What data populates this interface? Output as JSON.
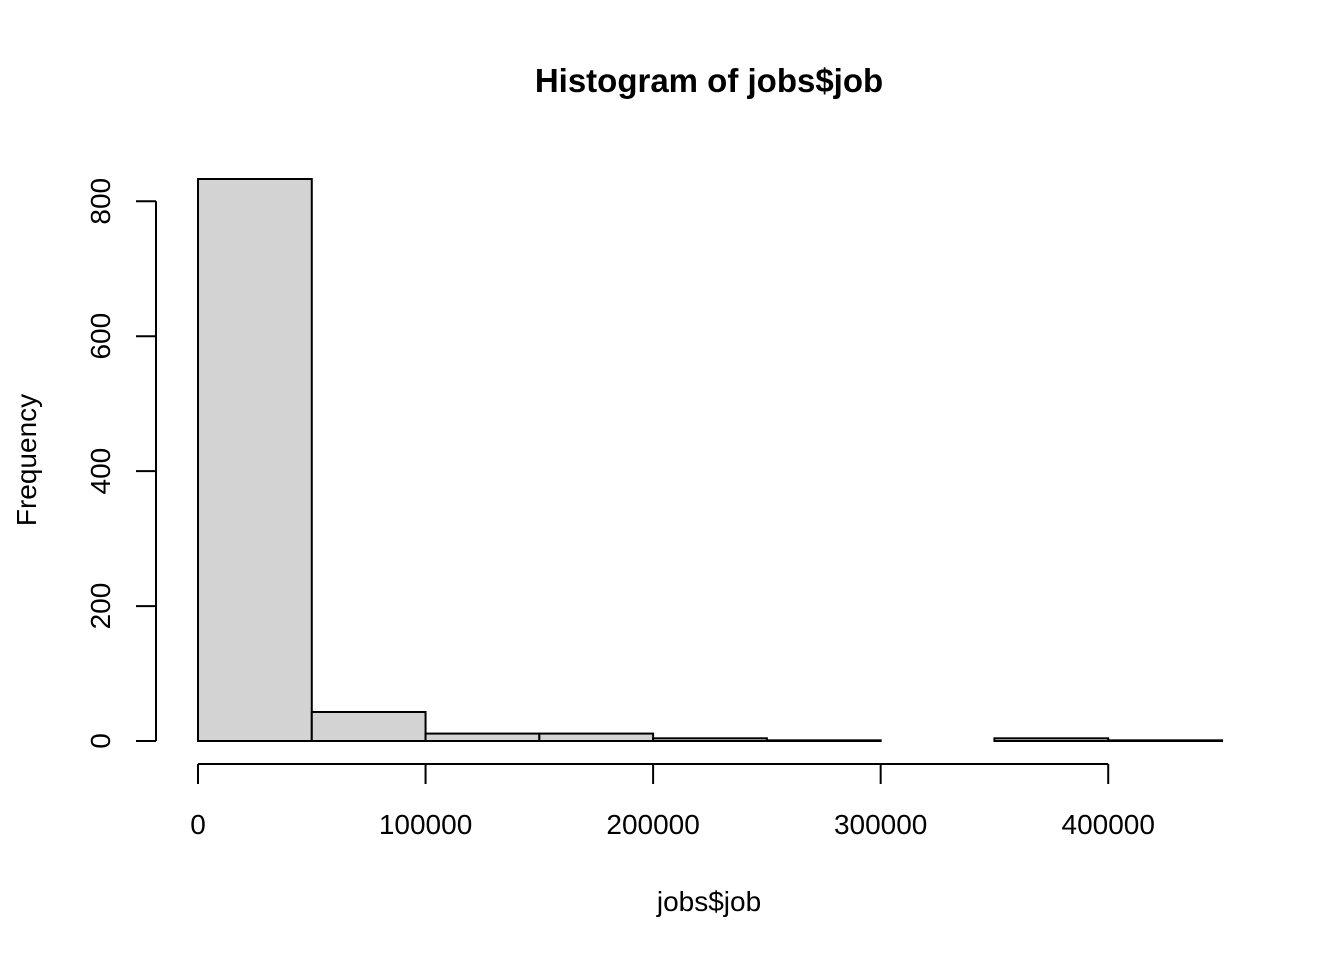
{
  "chart_data": {
    "type": "bar",
    "title": "Histogram of jobs$job",
    "xlabel": "jobs$job",
    "ylabel": "Frequency",
    "bins": [
      {
        "start": 0,
        "end": 50000,
        "count": 833
      },
      {
        "start": 50000,
        "end": 100000,
        "count": 43
      },
      {
        "start": 100000,
        "end": 150000,
        "count": 11
      },
      {
        "start": 150000,
        "end": 200000,
        "count": 11
      },
      {
        "start": 200000,
        "end": 250000,
        "count": 4
      },
      {
        "start": 250000,
        "end": 300000,
        "count": 1
      },
      {
        "start": 300000,
        "end": 350000,
        "count": 0
      },
      {
        "start": 350000,
        "end": 400000,
        "count": 4
      },
      {
        "start": 400000,
        "end": 450000,
        "count": 1
      }
    ],
    "xlim": [
      0,
      450000
    ],
    "ylim": [
      0,
      833
    ],
    "x_ticks": [
      0,
      100000,
      200000,
      300000,
      400000
    ],
    "x_tick_labels": [
      "0",
      "100000",
      "200000",
      "300000",
      "400000"
    ],
    "y_ticks": [
      0,
      200,
      400,
      600,
      800
    ],
    "y_tick_labels": [
      "0",
      "200",
      "400",
      "600",
      "800"
    ],
    "bar_fill": "#d3d3d3",
    "bar_border": "#000000",
    "grid": false
  }
}
